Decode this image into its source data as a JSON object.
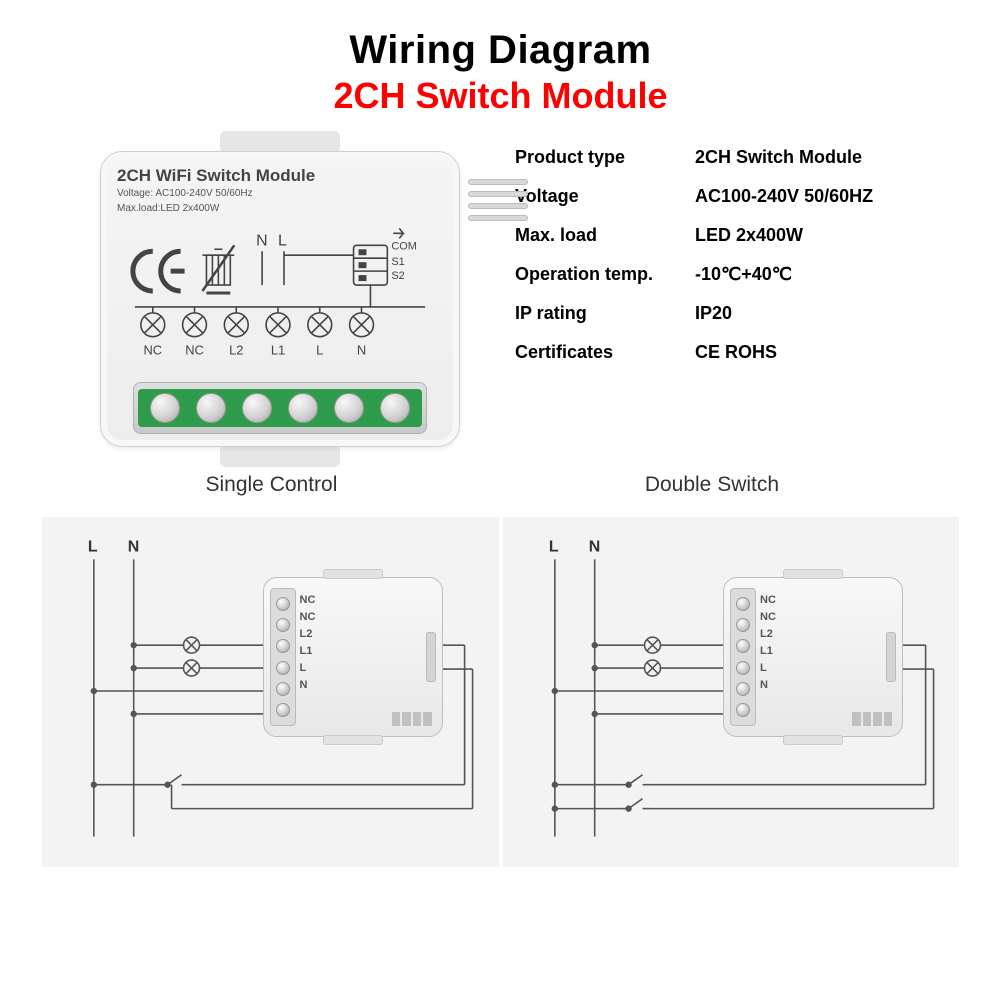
{
  "colors": {
    "title": "#000000",
    "subtitle": "#ff0000",
    "body_text": "#000000",
    "spec_text": "#555555",
    "diagram_bg": "#f3f3f3",
    "module_bg_top": "#f5f5f5",
    "module_bg_bottom": "#ededed",
    "terminal_green": "#2e9b4d",
    "screw_light": "#f8f8f8",
    "screw_dark": "#9c9c9c",
    "stroke": "#444444",
    "wire": "#555555",
    "page_bg": "#ffffff"
  },
  "fonts": {
    "title_size_pt": 30,
    "subtitle_size_pt": 27,
    "spec_size_pt": 14,
    "mode_label_size_pt": 16,
    "module_title_size_pt": 13,
    "module_spec_size_pt": 8,
    "mini_label_size_pt": 8
  },
  "header": {
    "title": "Wiring Diagram",
    "subtitle": "2CH Switch Module"
  },
  "module": {
    "title": "2CH WiFi Switch Module",
    "spec_line1": "Voltage: AC100-240V 50/60Hz",
    "spec_line2": "Max.load:LED 2x400W",
    "schematic": {
      "top_labels": [
        "N",
        "L"
      ],
      "marks": [
        "NC",
        "NC",
        "L2",
        "L1",
        "L",
        "N"
      ],
      "right_labels": [
        "COM",
        "S1",
        "S2"
      ]
    },
    "screw_count": 6,
    "wire_out_count": 4
  },
  "specs": [
    {
      "label": "Product type",
      "value": "2CH Switch Module"
    },
    {
      "label": "Voltage",
      "value": "AC100-240V  50/60HZ"
    },
    {
      "label": "Max. load",
      "value": "LED 2x400W"
    },
    {
      "label": "Operation temp.",
      "value": "-10℃+40℃"
    },
    {
      "label": "IP rating",
      "value": "IP20"
    },
    {
      "label": "Certificates",
      "value": "CE  ROHS"
    }
  ],
  "modes": {
    "left": "Single Control",
    "right": "Double Switch"
  },
  "mini_module": {
    "terminal_labels": [
      "NC",
      "NC",
      "L2",
      "L1",
      "L",
      "N"
    ],
    "screw_count": 6
  },
  "wiring": {
    "rail_labels": [
      "L",
      "N"
    ],
    "single": {
      "type": "schematic",
      "description": "L and N rails feed module L/N; two lamps on L1/L2 return to N; one external switch to S-block",
      "lamps": 2,
      "external_switches": 1
    },
    "double": {
      "type": "schematic",
      "description": "L and N rails feed module L/N; two lamps on L1/L2 return to N; two external switches to S-block",
      "lamps": 2,
      "external_switches": 2
    }
  }
}
